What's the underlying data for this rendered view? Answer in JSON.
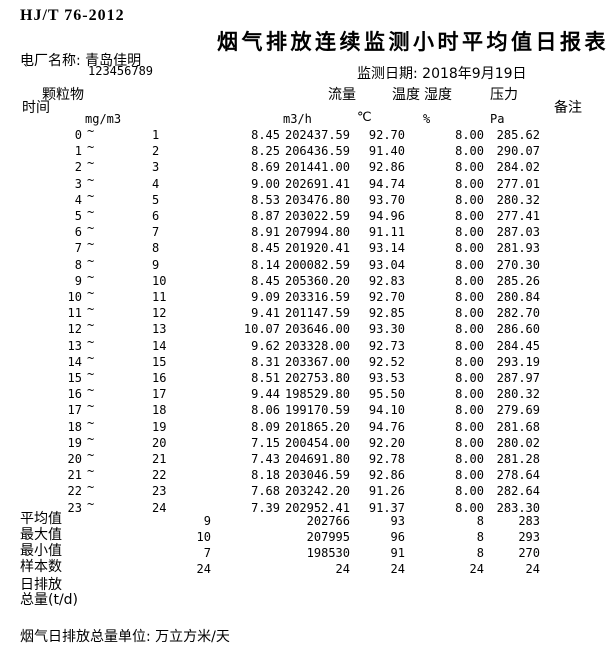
{
  "document": {
    "standard_code": "HJ/T 76-2012",
    "title": "烟气排放连续监测小时平均值日报表",
    "plant_name_line": "电厂名称: 青岛佳明",
    "plant_tick": "`",
    "plant_code": "123456789",
    "date_line": "监测日期: 2018年9月19日",
    "footer_note": "烟气日排放总量单位: 万立方米/天"
  },
  "table": {
    "headers": {
      "time": "时间",
      "pm": "颗粒物",
      "flow": "流量",
      "temp": "温度",
      "humidity": "湿度",
      "pressure": "压力",
      "remark": "备注"
    },
    "units": {
      "pm": "mg/m3",
      "flow": "m3/h",
      "temp": "℃",
      "humidity": "%",
      "pressure": "Pa"
    },
    "tilde": "~",
    "rows": [
      {
        "t1": "0",
        "t2": "1",
        "pm": "8.45",
        "flow": "202437.59",
        "temp": "92.70",
        "humidity": "8.00",
        "pressure": "285.62"
      },
      {
        "t1": "1",
        "t2": "2",
        "pm": "8.25",
        "flow": "206436.59",
        "temp": "91.40",
        "humidity": "8.00",
        "pressure": "290.07"
      },
      {
        "t1": "2",
        "t2": "3",
        "pm": "8.69",
        "flow": "201441.00",
        "temp": "92.86",
        "humidity": "8.00",
        "pressure": "284.02"
      },
      {
        "t1": "3",
        "t2": "4",
        "pm": "9.00",
        "flow": "202691.41",
        "temp": "94.74",
        "humidity": "8.00",
        "pressure": "277.01"
      },
      {
        "t1": "4",
        "t2": "5",
        "pm": "8.53",
        "flow": "203476.80",
        "temp": "93.70",
        "humidity": "8.00",
        "pressure": "280.32"
      },
      {
        "t1": "5",
        "t2": "6",
        "pm": "8.87",
        "flow": "203022.59",
        "temp": "94.96",
        "humidity": "8.00",
        "pressure": "277.41"
      },
      {
        "t1": "6",
        "t2": "7",
        "pm": "8.91",
        "flow": "207994.80",
        "temp": "91.11",
        "humidity": "8.00",
        "pressure": "287.03"
      },
      {
        "t1": "7",
        "t2": "8",
        "pm": "8.45",
        "flow": "201920.41",
        "temp": "93.14",
        "humidity": "8.00",
        "pressure": "281.93"
      },
      {
        "t1": "8",
        "t2": "9",
        "pm": "8.14",
        "flow": "200082.59",
        "temp": "93.04",
        "humidity": "8.00",
        "pressure": "270.30"
      },
      {
        "t1": "9",
        "t2": "10",
        "pm": "8.45",
        "flow": "205360.20",
        "temp": "92.83",
        "humidity": "8.00",
        "pressure": "285.26"
      },
      {
        "t1": "10",
        "t2": "11",
        "pm": "9.09",
        "flow": "203316.59",
        "temp": "92.70",
        "humidity": "8.00",
        "pressure": "280.84"
      },
      {
        "t1": "11",
        "t2": "12",
        "pm": "9.41",
        "flow": "201147.59",
        "temp": "92.85",
        "humidity": "8.00",
        "pressure": "282.70"
      },
      {
        "t1": "12",
        "t2": "13",
        "pm": "10.07",
        "flow": "203646.00",
        "temp": "93.30",
        "humidity": "8.00",
        "pressure": "286.60"
      },
      {
        "t1": "13",
        "t2": "14",
        "pm": "9.62",
        "flow": "203328.00",
        "temp": "92.73",
        "humidity": "8.00",
        "pressure": "284.45"
      },
      {
        "t1": "14",
        "t2": "15",
        "pm": "8.31",
        "flow": "203367.00",
        "temp": "92.52",
        "humidity": "8.00",
        "pressure": "293.19"
      },
      {
        "t1": "15",
        "t2": "16",
        "pm": "8.51",
        "flow": "202753.80",
        "temp": "93.53",
        "humidity": "8.00",
        "pressure": "287.97"
      },
      {
        "t1": "16",
        "t2": "17",
        "pm": "9.44",
        "flow": "198529.80",
        "temp": "95.50",
        "humidity": "8.00",
        "pressure": "280.32"
      },
      {
        "t1": "17",
        "t2": "18",
        "pm": "8.06",
        "flow": "199170.59",
        "temp": "94.10",
        "humidity": "8.00",
        "pressure": "279.69"
      },
      {
        "t1": "18",
        "t2": "19",
        "pm": "8.09",
        "flow": "201865.20",
        "temp": "94.76",
        "humidity": "8.00",
        "pressure": "281.68"
      },
      {
        "t1": "19",
        "t2": "20",
        "pm": "7.15",
        "flow": "200454.00",
        "temp": "92.20",
        "humidity": "8.00",
        "pressure": "280.02"
      },
      {
        "t1": "20",
        "t2": "21",
        "pm": "7.43",
        "flow": "204691.80",
        "temp": "92.78",
        "humidity": "8.00",
        "pressure": "281.28"
      },
      {
        "t1": "21",
        "t2": "22",
        "pm": "8.18",
        "flow": "203046.59",
        "temp": "92.86",
        "humidity": "8.00",
        "pressure": "278.64"
      },
      {
        "t1": "22",
        "t2": "23",
        "pm": "7.68",
        "flow": "203242.20",
        "temp": "91.26",
        "humidity": "8.00",
        "pressure": "282.64"
      },
      {
        "t1": "23",
        "t2": "24",
        "pm": "7.39",
        "flow": "202952.41",
        "temp": "91.37",
        "humidity": "8.00",
        "pressure": "283.30"
      }
    ],
    "summary_rows": [
      {
        "label": "平均值",
        "v1": "9",
        "flow": "202766",
        "temp": "93",
        "humidity": "8",
        "pressure": "283"
      },
      {
        "label": "最大值",
        "v1": "10",
        "flow": "207995",
        "temp": "96",
        "humidity": "8",
        "pressure": "293"
      },
      {
        "label": "最小值",
        "v1": "7",
        "flow": "198530",
        "temp": "91",
        "humidity": "8",
        "pressure": "270"
      },
      {
        "label": "样本数",
        "v1": "24",
        "flow": "24",
        "temp": "24",
        "humidity": "24",
        "pressure": "24"
      }
    ],
    "extra_labels": [
      "日排放",
      "总量(t/d)"
    ]
  }
}
